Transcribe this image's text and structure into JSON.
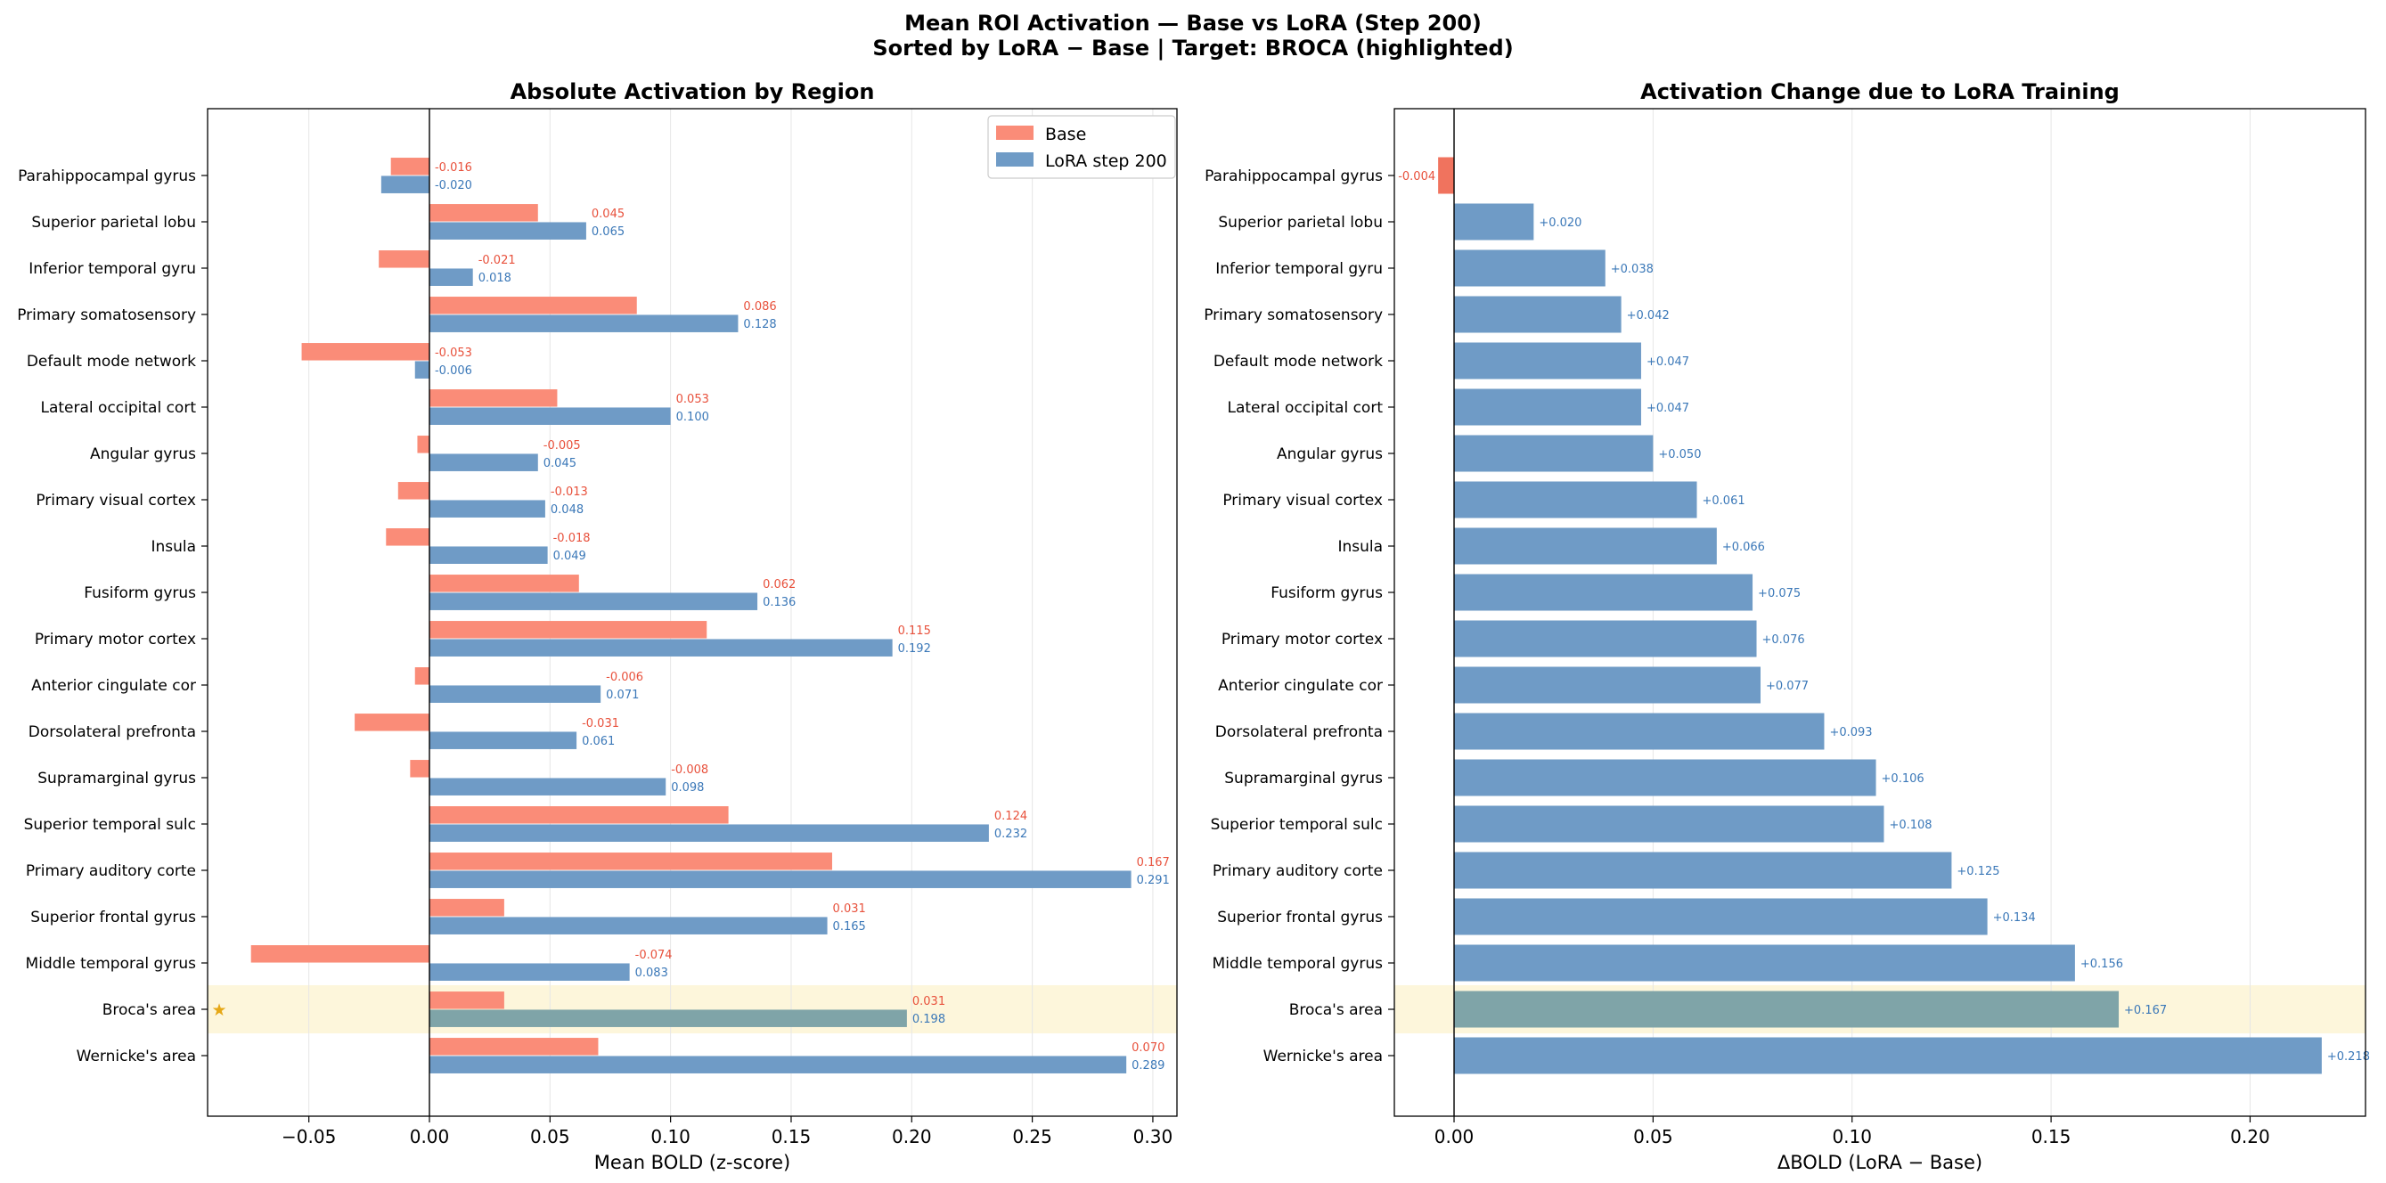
{
  "figure": {
    "title_line1": "Mean ROI Activation — Base vs LoRA (Step 200)",
    "title_line2": "Sorted by LoRA − Base  |  Target: BROCA (highlighted)"
  },
  "colors": {
    "base": "#fa8c78",
    "lora": "#6f9bc6",
    "highlight_bar": "#7fa4a8",
    "highlight_band": "#fdf6db",
    "negative_delta": "#f0735e",
    "base_label": "#e8513c",
    "lora_label": "#3b78b8",
    "star": "#e6a817"
  },
  "chart_data": [
    {
      "type": "bar",
      "orientation": "horizontal",
      "title": "Absolute Activation by Region",
      "xlabel": "Mean BOLD (z-score)",
      "xlim": [
        -0.092,
        0.31
      ],
      "xticks": [
        -0.05,
        0.0,
        0.05,
        0.1,
        0.15,
        0.2,
        0.25,
        0.3
      ],
      "xtick_labels": [
        "−0.05",
        "0.00",
        "0.05",
        "0.10",
        "0.15",
        "0.20",
        "0.25",
        "0.30"
      ],
      "grid": "x",
      "legend_position": "top-right",
      "highlight": "Broca's area",
      "categories": [
        "Parahippocampal gyrus",
        "Superior parietal lobu",
        "Inferior temporal gyru",
        "Primary somatosensory ",
        "Default mode network",
        "Lateral occipital cort",
        "Angular gyrus",
        "Primary visual cortex",
        "Insula",
        "Fusiform gyrus",
        "Primary motor cortex",
        "Anterior cingulate cor",
        "Dorsolateral prefronta",
        "Supramarginal gyrus",
        "Superior temporal sulc",
        "Primary auditory corte",
        "Superior frontal gyrus",
        "Middle temporal gyrus",
        "Broca's area",
        "Wernicke's area"
      ],
      "series": [
        {
          "name": "Base",
          "values": [
            -0.016,
            0.045,
            -0.021,
            0.086,
            -0.053,
            0.053,
            -0.005,
            -0.013,
            -0.018,
            0.062,
            0.115,
            -0.006,
            -0.031,
            -0.008,
            0.124,
            0.167,
            0.031,
            -0.074,
            0.031,
            0.07
          ],
          "labels": [
            "-0.016",
            "0.045",
            "-0.021",
            "0.086",
            "-0.053",
            "0.053",
            "-0.005",
            "-0.013",
            "-0.018",
            "0.062",
            "0.115",
            "-0.006",
            "-0.031",
            "-0.008",
            "0.124",
            "0.167",
            "0.031",
            "-0.074",
            "0.031",
            "0.070"
          ]
        },
        {
          "name": "LoRA step 200",
          "values": [
            -0.02,
            0.065,
            0.018,
            0.128,
            -0.006,
            0.1,
            0.045,
            0.048,
            0.049,
            0.136,
            0.192,
            0.071,
            0.061,
            0.098,
            0.232,
            0.291,
            0.165,
            0.083,
            0.198,
            0.289
          ],
          "labels": [
            "-0.020",
            "0.065",
            "0.018",
            "0.128",
            "-0.006",
            "0.100",
            "0.045",
            "0.048",
            "0.049",
            "0.136",
            "0.192",
            "0.071",
            "0.061",
            "0.098",
            "0.232",
            "0.291",
            "0.165",
            "0.083",
            "0.198",
            "0.289"
          ]
        }
      ]
    },
    {
      "type": "bar",
      "orientation": "horizontal",
      "title": "Activation Change due to LoRA Training",
      "xlabel": "ΔBOLD  (LoRA − Base)",
      "xlim": [
        -0.015,
        0.229
      ],
      "xticks": [
        0.0,
        0.05,
        0.1,
        0.15,
        0.2
      ],
      "xtick_labels": [
        "0.00",
        "0.05",
        "0.10",
        "0.15",
        "0.20"
      ],
      "grid": "x",
      "highlight": "Broca's area",
      "categories": [
        "Parahippocampal gyrus",
        "Superior parietal lobu",
        "Inferior temporal gyru",
        "Primary somatosensory ",
        "Default mode network",
        "Lateral occipital cort",
        "Angular gyrus",
        "Primary visual cortex",
        "Insula",
        "Fusiform gyrus",
        "Primary motor cortex",
        "Anterior cingulate cor",
        "Dorsolateral prefronta",
        "Supramarginal gyrus",
        "Superior temporal sulc",
        "Primary auditory corte",
        "Superior frontal gyrus",
        "Middle temporal gyrus",
        "Broca's area",
        "Wernicke's area"
      ],
      "values": [
        -0.004,
        0.02,
        0.038,
        0.042,
        0.047,
        0.047,
        0.05,
        0.061,
        0.066,
        0.075,
        0.076,
        0.077,
        0.093,
        0.106,
        0.108,
        0.125,
        0.134,
        0.156,
        0.167,
        0.218
      ],
      "labels": [
        "-0.004",
        "+0.020",
        "+0.038",
        "+0.042",
        "+0.047",
        "+0.047",
        "+0.050",
        "+0.061",
        "+0.066",
        "+0.075",
        "+0.076",
        "+0.077",
        "+0.093",
        "+0.106",
        "+0.108",
        "+0.125",
        "+0.134",
        "+0.156",
        "+0.167",
        "+0.218"
      ]
    }
  ]
}
